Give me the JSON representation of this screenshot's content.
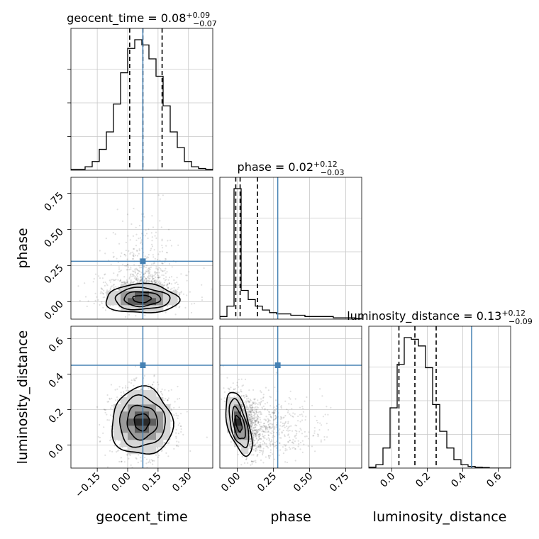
{
  "chart_data": {
    "type": "corner",
    "parameters": [
      "geocent_time",
      "phase",
      "luminosity_distance"
    ],
    "truths": {
      "geocent_time": 0.075,
      "phase": 0.28,
      "luminosity_distance": 0.45
    },
    "truth_color": "#4682b4",
    "axes": {
      "geocent_time": {
        "range": [
          -0.28,
          0.42
        ],
        "ticks": [
          -0.15,
          0.0,
          0.15,
          0.3
        ],
        "tick_labels": [
          "−0.15",
          "0.00",
          "0.15",
          "0.30"
        ]
      },
      "phase": {
        "range": [
          -0.12,
          0.86
        ],
        "ticks": [
          0.0,
          0.25,
          0.5,
          0.75
        ],
        "tick_labels": [
          "0.00",
          "0.25",
          "0.50",
          "0.75"
        ]
      },
      "luminosity_distance": {
        "range": [
          -0.13,
          0.67
        ],
        "ticks": [
          0.0,
          0.2,
          0.4,
          0.6
        ],
        "tick_labels": [
          "0.0",
          "0.2",
          "0.4",
          "0.6"
        ]
      }
    },
    "marginals": [
      {
        "param": "geocent_time",
        "title": {
          "name": "geocent_time",
          "median": "0.08",
          "plus": "+0.09",
          "minus": "−0.07"
        },
        "quantiles": [
          0.01,
          0.075,
          0.17
        ],
        "bin_edges": [
          -0.28,
          -0.245,
          -0.21,
          -0.175,
          -0.14,
          -0.105,
          -0.07,
          -0.035,
          0,
          0.035,
          0.07,
          0.105,
          0.14,
          0.175,
          0.21,
          0.245,
          0.28,
          0.315,
          0.35,
          0.385,
          0.42
        ],
        "counts": [
          0.5,
          0.5,
          2,
          5,
          12,
          22,
          38,
          56,
          70,
          75,
          72,
          64,
          54,
          37,
          22,
          13,
          5,
          2,
          1,
          0.5
        ]
      },
      {
        "param": "phase",
        "title": {
          "name": "phase",
          "median": "0.02",
          "plus": "+0.12",
          "minus": "−0.03"
        },
        "quantiles": [
          -0.01,
          0.02,
          0.14
        ],
        "bin_edges": [
          -0.12,
          -0.071,
          -0.022,
          0.027,
          0.076,
          0.125,
          0.174,
          0.223,
          0.272,
          0.321,
          0.37,
          0.419,
          0.468,
          0.517,
          0.566,
          0.615,
          0.664,
          0.713,
          0.762,
          0.811,
          0.86
        ],
        "counts": [
          2,
          10,
          100,
          22,
          15,
          10,
          7,
          5,
          4,
          4,
          3,
          3,
          2,
          2,
          2,
          2,
          1,
          1,
          1,
          0.5
        ]
      },
      {
        "param": "luminosity_distance",
        "title": {
          "name": "luminosity_distance",
          "median": "0.13",
          "plus": "+0.12",
          "minus": "−0.09"
        },
        "quantiles": [
          0.04,
          0.13,
          0.25
        ],
        "bin_edges": [
          -0.13,
          -0.09,
          -0.05,
          -0.01,
          0.03,
          0.07,
          0.11,
          0.15,
          0.19,
          0.23,
          0.27,
          0.31,
          0.35,
          0.39,
          0.43,
          0.47,
          0.51,
          0.55,
          0.59,
          0.63,
          0.67
        ],
        "counts": [
          0.5,
          2,
          12,
          36,
          62,
          78,
          77,
          73,
          60,
          38,
          22,
          12,
          5,
          2,
          1,
          0.5,
          0.3,
          0,
          0,
          0
        ]
      }
    ],
    "joints": [
      {
        "x": "geocent_time",
        "y": "phase",
        "x_center": 0.07,
        "y_center": 0.02,
        "x_sd": 0.09,
        "y_sd": 0.05,
        "y_tail": 0.22,
        "corr": 0.0
      },
      {
        "x": "geocent_time",
        "y": "luminosity_distance",
        "x_center": 0.07,
        "y_center": 0.13,
        "x_sd": 0.075,
        "y_sd": 0.095,
        "corr": 0.0
      },
      {
        "x": "phase",
        "y": "luminosity_distance",
        "x_center": 0.01,
        "y_center": 0.12,
        "x_sd": 0.045,
        "y_sd": 0.09,
        "x_tail": 0.25,
        "corr": -0.55
      }
    ],
    "axis_labels": {
      "x": [
        "geocent_time",
        "phase",
        "luminosity_distance"
      ],
      "y": [
        "phase",
        "luminosity_distance"
      ]
    }
  }
}
